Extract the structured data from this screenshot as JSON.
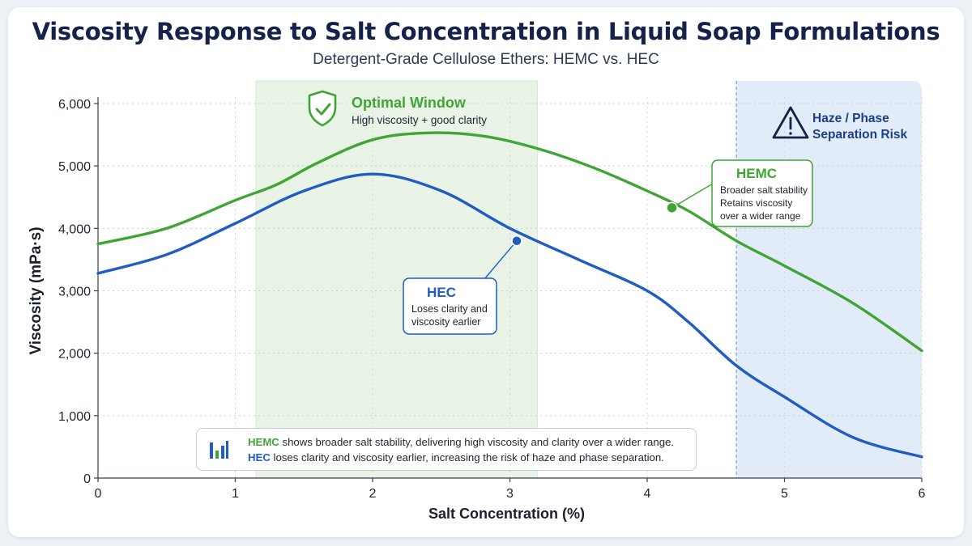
{
  "colors": {
    "hemc": "#3fa535",
    "hec": "#1f5cc4",
    "optimal_fill": "#e9f4e7",
    "risk_fill": "#e2ecf8",
    "title": "#15224a"
  },
  "icons": {
    "optimal": "shield-check-icon",
    "risk": "warning-triangle-icon",
    "summary": "bar-chart-icon"
  },
  "chart_data": {
    "type": "line",
    "title": "Viscosity Response to Salt Concentration in Liquid Soap Formulations",
    "subtitle": "Detergent-Grade Cellulose Ethers: HEMC vs. HEC",
    "xlabel": "Salt Concentration (%)",
    "ylabel": "Viscosity (mPa·s)",
    "xlim": [
      0,
      6
    ],
    "ylim": [
      0,
      6000
    ],
    "x_ticks": [
      0,
      1,
      2,
      3,
      4,
      5,
      6
    ],
    "x_tick_labels": [
      "0",
      "1",
      "2",
      "3",
      "4",
      "5",
      "6"
    ],
    "y_ticks": [
      0,
      1000,
      2000,
      3000,
      4000,
      5000,
      6000
    ],
    "y_tick_labels": [
      "0",
      "1,000",
      "2,000",
      "3,000",
      "4,000",
      "5,000",
      "6,000"
    ],
    "grid": true,
    "series": [
      {
        "name": "HEMC",
        "x": [
          0,
          0.5,
          1.0,
          1.3,
          1.6,
          2.0,
          2.4,
          2.8,
          3.2,
          3.6,
          4.0,
          4.3,
          4.65,
          5.0,
          5.5,
          6.0
        ],
        "values": [
          3750,
          4000,
          4450,
          4700,
          5050,
          5420,
          5530,
          5480,
          5280,
          4980,
          4600,
          4280,
          3800,
          3400,
          2800,
          2040
        ]
      },
      {
        "name": "HEC",
        "x": [
          0,
          0.5,
          1.0,
          1.5,
          2.0,
          2.5,
          3.0,
          3.5,
          4.0,
          4.3,
          4.65,
          5.0,
          5.5,
          6.0
        ],
        "values": [
          3280,
          3580,
          4080,
          4600,
          4870,
          4600,
          4000,
          3500,
          3000,
          2500,
          1800,
          1300,
          650,
          340
        ]
      }
    ],
    "regions": [
      {
        "name": "optimal",
        "x_start": 1.15,
        "x_end": 3.2,
        "title": "Optimal Window",
        "note": "High viscosity + good clarity"
      },
      {
        "name": "risk",
        "x_start": 4.65,
        "x_end": 6.0,
        "title_line1": "Haze / Phase",
        "title_line2": "Separation Risk"
      }
    ],
    "callouts": [
      {
        "series": "HEMC",
        "x": 4.18,
        "y": 4330,
        "title": "HEMC",
        "lines": [
          "Broader salt stability",
          "Retains viscosity",
          "over a wider range"
        ]
      },
      {
        "series": "HEC",
        "x": 3.05,
        "y": 3800,
        "title": "HEC",
        "lines": [
          "Loses clarity and",
          "viscosity earlier"
        ]
      }
    ]
  },
  "summary": {
    "hemc_key": "HEMC",
    "hemc_text": " shows broader salt stability, delivering high viscosity and clarity over a wider range.",
    "hec_key": "HEC",
    "hec_text": " loses clarity and viscosity earlier, increasing the risk of haze and phase separation."
  }
}
